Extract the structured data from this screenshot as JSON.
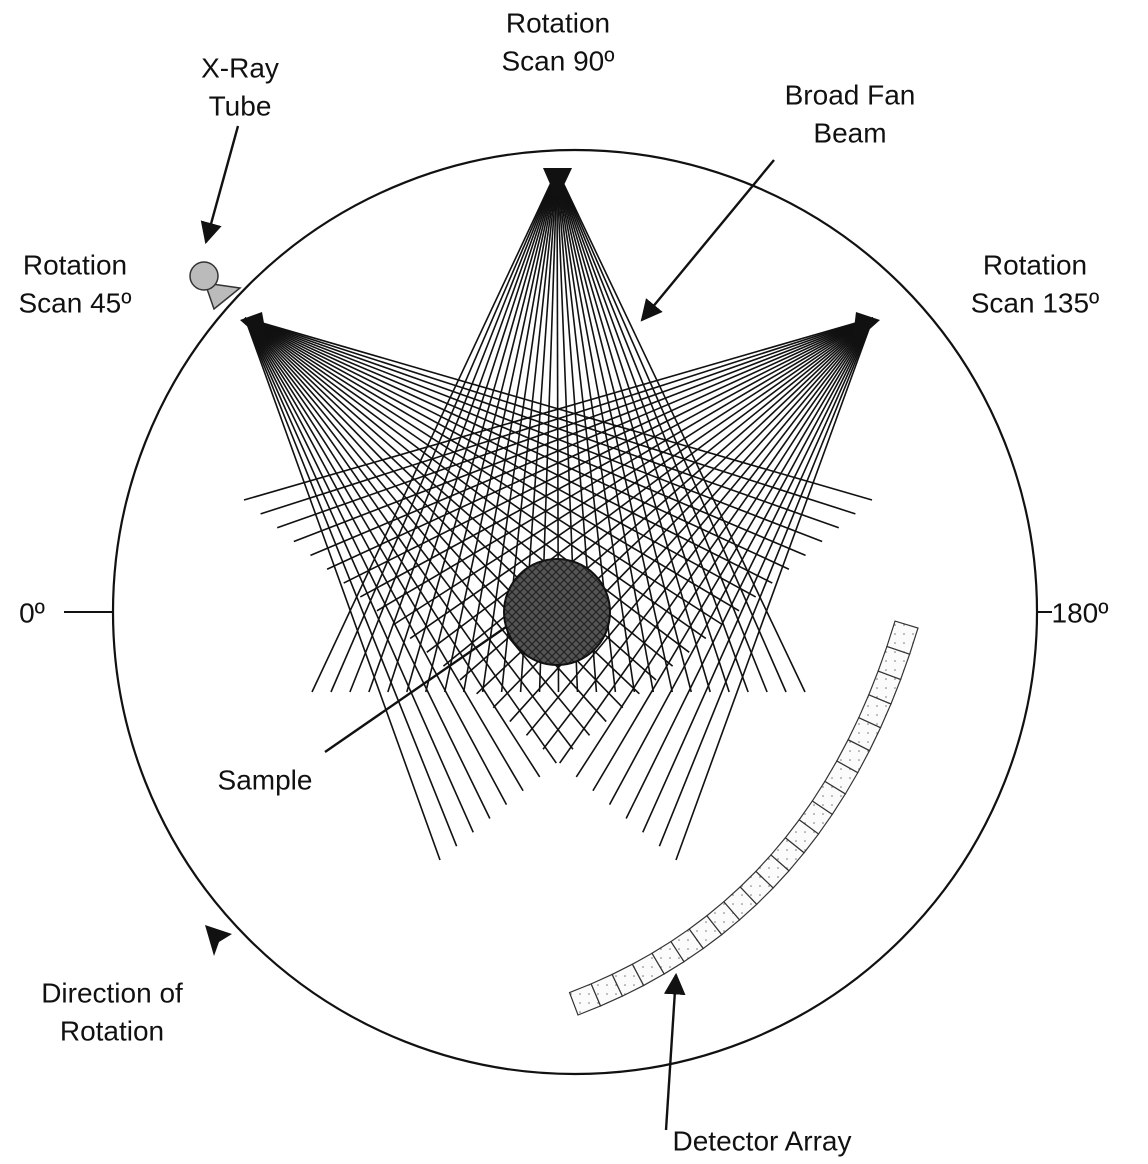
{
  "labels": {
    "xray_tube": [
      "X-Ray",
      "Tube"
    ],
    "scan_90": [
      "Rotation",
      "Scan 90º"
    ],
    "fan_beam": [
      "Broad Fan",
      "Beam"
    ],
    "scan_45": [
      "Rotation",
      "Scan 45º"
    ],
    "scan_135": [
      "Rotation",
      "Scan 135º"
    ],
    "zero": [
      "0º"
    ],
    "one_eighty": [
      "180º"
    ],
    "sample": [
      "Sample"
    ],
    "direction": [
      "Direction of",
      "Rotation"
    ],
    "detector": [
      "Detector Array"
    ]
  }
}
